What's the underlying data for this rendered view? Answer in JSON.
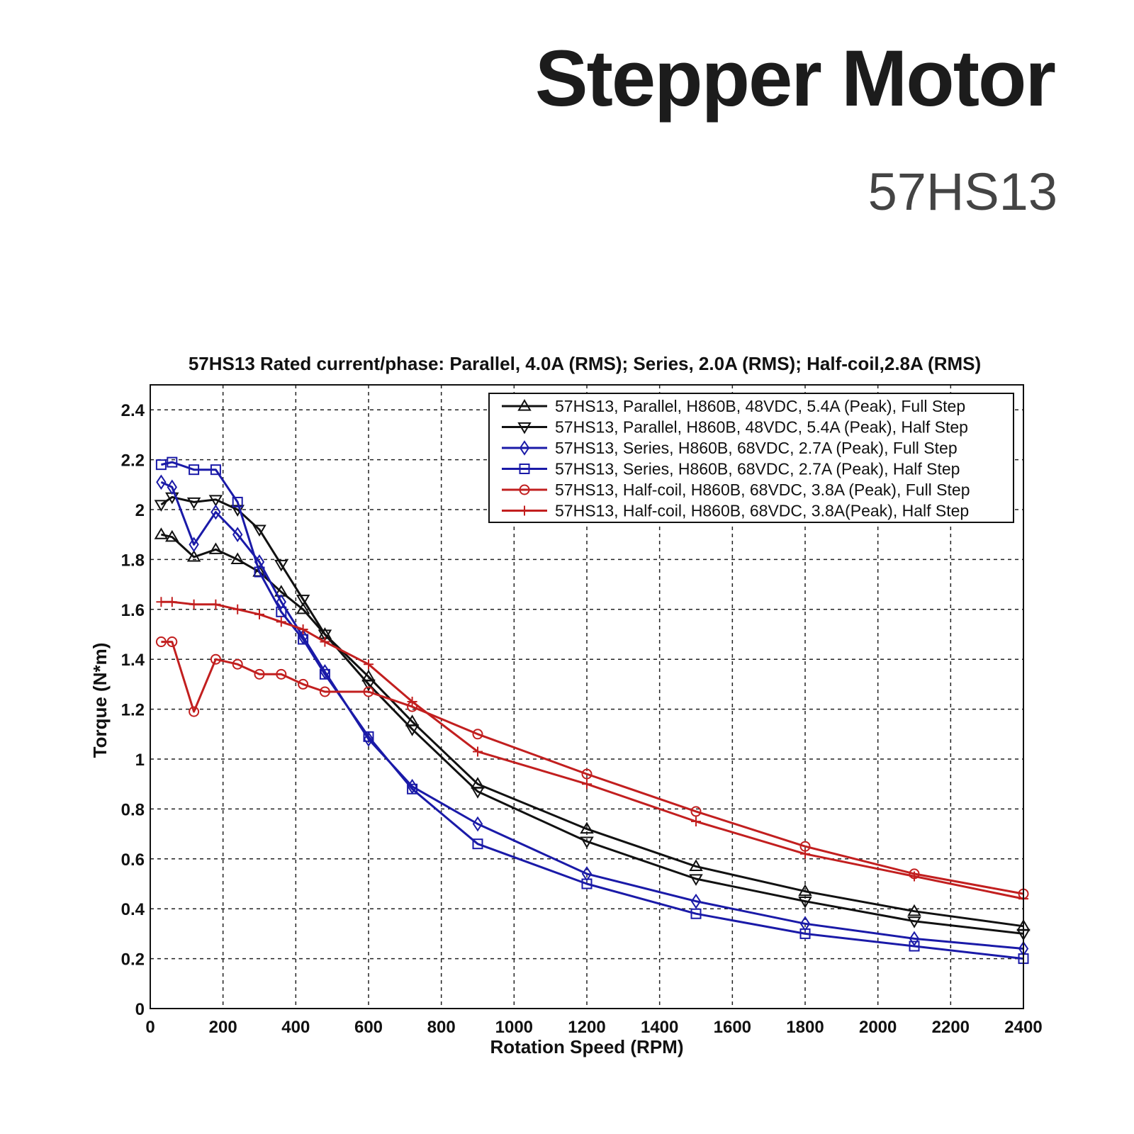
{
  "header": {
    "title": "Stepper Motor",
    "model": "57HS13"
  },
  "colors": {
    "black": "#111111",
    "blue": "#1a1aa8",
    "red": "#c21f1f",
    "grid": "#222222"
  },
  "chart_data": {
    "type": "line",
    "title": "57HS13 Rated current/phase: Parallel, 4.0A (RMS); Series, 2.0A (RMS); Half-coil,2.8A (RMS)",
    "xlabel": "Rotation Speed (RPM)",
    "ylabel": "Torque (N*m)",
    "xlim": [
      0,
      2400
    ],
    "ylim": [
      0,
      2.5
    ],
    "xticks": [
      0,
      200,
      400,
      600,
      800,
      1000,
      1200,
      1400,
      1600,
      1800,
      2000,
      2200,
      2400
    ],
    "yticks": [
      0,
      0.2,
      0.4,
      0.6,
      0.8,
      1,
      1.2,
      1.4,
      1.6,
      1.8,
      2,
      2.2,
      2.4
    ],
    "xtick_labels": [
      "0",
      "200",
      "400",
      "600",
      "800",
      "1000",
      "1200",
      "1400",
      "1600",
      "1800",
      "2000",
      "2200",
      "2400"
    ],
    "ytick_labels": [
      "0",
      "0.2",
      "0.4",
      "0.6",
      "0.8",
      "1",
      "1.2",
      "1.4",
      "1.6",
      "1.8",
      "2",
      "2.2",
      "2.4"
    ],
    "grid": true,
    "legend_position": "top-right",
    "series": [
      {
        "name": "57HS13, Parallel, H860B, 48VDC, 5.4A (Peak), Full Step",
        "color": "#111111",
        "marker": "triangle-up",
        "x": [
          30,
          60,
          120,
          180,
          240,
          300,
          360,
          420,
          480,
          600,
          720,
          900,
          1200,
          1500,
          1800,
          2100,
          2400
        ],
        "y": [
          1.9,
          1.89,
          1.81,
          1.84,
          1.8,
          1.75,
          1.67,
          1.6,
          1.5,
          1.33,
          1.15,
          0.9,
          0.72,
          0.57,
          0.47,
          0.39,
          0.33
        ]
      },
      {
        "name": "57HS13, Parallel, H860B, 48VDC, 5.4A (Peak), Half Step",
        "color": "#111111",
        "marker": "triangle-down",
        "x": [
          30,
          60,
          120,
          180,
          240,
          300,
          360,
          420,
          480,
          600,
          720,
          900,
          1200,
          1500,
          1800,
          2100,
          2400
        ],
        "y": [
          2.02,
          2.05,
          2.03,
          2.04,
          2.0,
          1.92,
          1.78,
          1.64,
          1.5,
          1.3,
          1.12,
          0.87,
          0.67,
          0.52,
          0.43,
          0.35,
          0.3
        ]
      },
      {
        "name": "57HS13, Series, H860B, 68VDC, 2.7A (Peak), Full Step",
        "color": "#1a1aa8",
        "marker": "diamond",
        "x": [
          30,
          60,
          120,
          180,
          240,
          300,
          360,
          420,
          480,
          600,
          720,
          900,
          1200,
          1500,
          1800,
          2100,
          2400
        ],
        "y": [
          2.11,
          2.09,
          1.86,
          1.99,
          1.9,
          1.79,
          1.63,
          1.49,
          1.35,
          1.08,
          0.89,
          0.74,
          0.54,
          0.43,
          0.34,
          0.28,
          0.24
        ]
      },
      {
        "name": "57HS13, Series, H860B, 68VDC, 2.7A (Peak), Half Step",
        "color": "#1a1aa8",
        "marker": "square",
        "x": [
          30,
          60,
          120,
          180,
          240,
          300,
          360,
          420,
          480,
          600,
          720,
          900,
          1200,
          1500,
          1800,
          2100,
          2400
        ],
        "y": [
          2.18,
          2.19,
          2.16,
          2.16,
          2.03,
          1.75,
          1.59,
          1.48,
          1.34,
          1.09,
          0.88,
          0.66,
          0.5,
          0.38,
          0.3,
          0.25,
          0.2
        ]
      },
      {
        "name": "57HS13, Half-coil, H860B, 68VDC, 3.8A (Peak), Full Step",
        "color": "#c21f1f",
        "marker": "circle",
        "x": [
          30,
          60,
          120,
          180,
          240,
          300,
          360,
          420,
          480,
          600,
          720,
          900,
          1200,
          1500,
          1800,
          2100,
          2400
        ],
        "y": [
          1.47,
          1.47,
          1.19,
          1.4,
          1.38,
          1.34,
          1.34,
          1.3,
          1.27,
          1.27,
          1.21,
          1.1,
          0.94,
          0.79,
          0.65,
          0.54,
          0.46
        ]
      },
      {
        "name": "57HS13, Half-coil, H860B, 68VDC, 3.8A(Peak), Half Step",
        "color": "#c21f1f",
        "marker": "plus",
        "x": [
          30,
          60,
          120,
          180,
          240,
          300,
          360,
          420,
          480,
          600,
          720,
          900,
          1200,
          1500,
          1800,
          2100,
          2400
        ],
        "y": [
          1.63,
          1.63,
          1.62,
          1.62,
          1.6,
          1.58,
          1.55,
          1.52,
          1.47,
          1.38,
          1.23,
          1.03,
          0.9,
          0.75,
          0.62,
          0.53,
          0.44
        ]
      }
    ]
  }
}
